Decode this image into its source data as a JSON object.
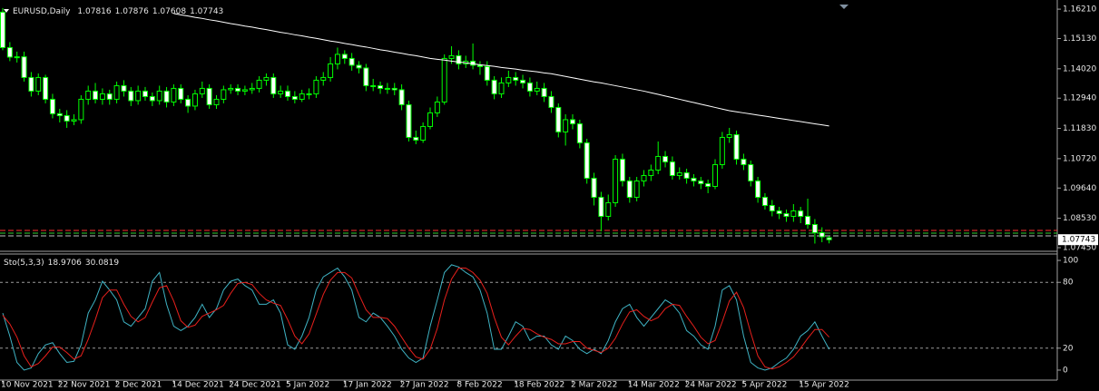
{
  "chart_data": [
    {
      "type": "candlestick",
      "title": "EURUSD,Daily",
      "categories": [
        "10 Nov 2021",
        null,
        null,
        null,
        null,
        null,
        null,
        null,
        "22 Nov 2021",
        null,
        null,
        null,
        null,
        null,
        null,
        null,
        "2 Dec 2021",
        null,
        null,
        null,
        null,
        null,
        null,
        null,
        "14 Dec 2021",
        null,
        null,
        null,
        null,
        null,
        null,
        null,
        "24 Dec 2021",
        null,
        null,
        null,
        null,
        null,
        null,
        null,
        "5 Jan 2022",
        null,
        null,
        null,
        null,
        null,
        null,
        null,
        "17 Jan 2022",
        null,
        null,
        null,
        null,
        null,
        null,
        null,
        "27 Jan 2022",
        null,
        null,
        null,
        null,
        null,
        null,
        null,
        "8 Feb 2022",
        null,
        null,
        null,
        null,
        null,
        null,
        null,
        "18 Feb 2022",
        null,
        null,
        null,
        null,
        null,
        null,
        null,
        "2 Mar 2022",
        null,
        null,
        null,
        null,
        null,
        null,
        null,
        "14 Mar 2022",
        null,
        null,
        null,
        null,
        null,
        null,
        null,
        "24 Mar 2022",
        null,
        null,
        null,
        null,
        null,
        null,
        null,
        "5 Apr 2022",
        null,
        null,
        null,
        null,
        null,
        null,
        null,
        "15 Apr 2022",
        null,
        null,
        null,
        null
      ],
      "open": [
        1.161,
        1.148,
        1.1445,
        1.1446,
        1.137,
        1.132,
        1.137,
        1.129,
        1.1237,
        1.123,
        1.121,
        1.1215,
        1.129,
        1.132,
        1.129,
        1.131,
        1.129,
        1.134,
        1.132,
        1.1285,
        1.132,
        1.13,
        1.1285,
        1.132,
        1.128,
        1.133,
        1.129,
        1.1265,
        1.131,
        1.133,
        1.127,
        1.129,
        1.1325,
        1.133,
        1.132,
        1.1325,
        1.133,
        1.136,
        1.137,
        1.131,
        1.132,
        1.13,
        1.129,
        1.131,
        1.131,
        1.136,
        1.137,
        1.142,
        1.1455,
        1.144,
        1.1415,
        1.1405,
        1.134,
        1.134,
        1.133,
        1.133,
        1.1325,
        1.127,
        1.115,
        1.114,
        1.119,
        1.124,
        1.128,
        1.144,
        1.145,
        1.142,
        1.143,
        1.1415,
        1.141,
        1.136,
        1.131,
        1.135,
        1.137,
        1.136,
        1.135,
        1.132,
        1.133,
        1.13,
        1.126,
        1.117,
        1.1215,
        1.12,
        1.113,
        1.1,
        1.093,
        1.086,
        1.091,
        1.107,
        1.099,
        1.093,
        1.099,
        1.101,
        1.103,
        1.108,
        1.106,
        1.101,
        1.102,
        1.1,
        1.099,
        1.098,
        1.097,
        1.105,
        1.115,
        1.116,
        1.107,
        1.105,
        1.099,
        1.093,
        1.09,
        1.088,
        1.087,
        1.086,
        1.088,
        1.086,
        1.083,
        1.08,
        1.07816
      ],
      "high": [
        1.1625,
        1.15,
        1.1465,
        1.1465,
        1.139,
        1.1385,
        1.138,
        1.131,
        1.1255,
        1.125,
        1.1235,
        1.1305,
        1.134,
        1.135,
        1.133,
        1.1325,
        1.1355,
        1.136,
        1.1335,
        1.134,
        1.1335,
        1.1315,
        1.134,
        1.1335,
        1.1345,
        1.1345,
        1.1305,
        1.1325,
        1.1355,
        1.1345,
        1.1305,
        1.134,
        1.1345,
        1.1345,
        1.134,
        1.135,
        1.1375,
        1.1385,
        1.1385,
        1.134,
        1.134,
        1.132,
        1.1325,
        1.133,
        1.1375,
        1.139,
        1.1445,
        1.148,
        1.147,
        1.146,
        1.143,
        1.142,
        1.1365,
        1.1355,
        1.135,
        1.135,
        1.1345,
        1.1285,
        1.1175,
        1.1205,
        1.126,
        1.13,
        1.1455,
        1.1485,
        1.147,
        1.145,
        1.1495,
        1.143,
        1.143,
        1.1375,
        1.137,
        1.1395,
        1.139,
        1.138,
        1.137,
        1.1355,
        1.135,
        1.132,
        1.1275,
        1.1235,
        1.1235,
        1.1215,
        1.1145,
        1.102,
        1.095,
        1.094,
        1.1085,
        1.109,
        1.1005,
        1.1005,
        1.103,
        1.105,
        1.1135,
        1.11,
        1.108,
        1.104,
        1.1035,
        1.1015,
        1.1005,
        1.0995,
        1.107,
        1.117,
        1.1185,
        1.1175,
        1.109,
        1.1065,
        1.1005,
        1.0945,
        1.092,
        1.0895,
        1.0885,
        1.0905,
        1.0895,
        1.0925,
        1.085,
        1.082,
        1.07876
      ],
      "low": [
        1.147,
        1.143,
        1.1425,
        1.1355,
        1.13,
        1.1305,
        1.1275,
        1.122,
        1.1205,
        1.1185,
        1.1195,
        1.12,
        1.127,
        1.1275,
        1.127,
        1.127,
        1.1275,
        1.13,
        1.1265,
        1.127,
        1.1285,
        1.1265,
        1.127,
        1.126,
        1.1265,
        1.1275,
        1.124,
        1.125,
        1.1295,
        1.1255,
        1.1255,
        1.1275,
        1.131,
        1.1305,
        1.1305,
        1.131,
        1.1315,
        1.134,
        1.1295,
        1.1295,
        1.1285,
        1.1275,
        1.128,
        1.129,
        1.1295,
        1.134,
        1.1355,
        1.14,
        1.142,
        1.1395,
        1.1385,
        1.132,
        1.132,
        1.131,
        1.131,
        1.1305,
        1.125,
        1.1135,
        1.1125,
        1.113,
        1.118,
        1.1225,
        1.127,
        1.142,
        1.14,
        1.1405,
        1.14,
        1.138,
        1.134,
        1.129,
        1.1295,
        1.1335,
        1.134,
        1.133,
        1.13,
        1.1305,
        1.128,
        1.124,
        1.115,
        1.112,
        1.118,
        1.111,
        1.098,
        1.09,
        1.0805,
        1.0845,
        1.0895,
        1.097,
        1.091,
        1.0915,
        1.097,
        1.099,
        1.1015,
        1.104,
        1.0995,
        1.0995,
        1.098,
        1.097,
        1.096,
        1.0945,
        1.096,
        1.1035,
        1.113,
        1.105,
        1.103,
        1.097,
        1.091,
        1.0885,
        1.086,
        1.085,
        1.084,
        1.084,
        1.0835,
        1.0815,
        1.076,
        1.0765,
        1.07608
      ],
      "close": [
        1.148,
        1.1445,
        1.1446,
        1.137,
        1.132,
        1.137,
        1.129,
        1.1237,
        1.123,
        1.121,
        1.1215,
        1.129,
        1.132,
        1.129,
        1.131,
        1.129,
        1.134,
        1.132,
        1.1285,
        1.132,
        1.13,
        1.1285,
        1.132,
        1.128,
        1.133,
        1.129,
        1.1265,
        1.131,
        1.133,
        1.127,
        1.129,
        1.1325,
        1.133,
        1.132,
        1.1325,
        1.133,
        1.136,
        1.137,
        1.131,
        1.132,
        1.13,
        1.129,
        1.131,
        1.131,
        1.136,
        1.137,
        1.142,
        1.1455,
        1.144,
        1.1415,
        1.1405,
        1.134,
        1.134,
        1.133,
        1.133,
        1.1325,
        1.127,
        1.115,
        1.114,
        1.119,
        1.124,
        1.128,
        1.144,
        1.145,
        1.142,
        1.143,
        1.1415,
        1.141,
        1.136,
        1.131,
        1.135,
        1.137,
        1.136,
        1.135,
        1.132,
        1.133,
        1.13,
        1.126,
        1.117,
        1.1215,
        1.12,
        1.113,
        1.1,
        1.093,
        1.086,
        1.091,
        1.107,
        1.099,
        1.093,
        1.099,
        1.101,
        1.103,
        1.108,
        1.106,
        1.101,
        1.102,
        1.1,
        1.099,
        1.098,
        1.097,
        1.105,
        1.115,
        1.116,
        1.107,
        1.105,
        1.099,
        1.093,
        1.09,
        1.088,
        1.087,
        1.086,
        1.088,
        1.086,
        1.083,
        1.08,
        1.0785,
        1.07743
      ],
      "up_color": "#000000",
      "down_color": "#ffffff",
      "wick_color": "#00ff00",
      "lines": [
        {
          "color": "#ffffff",
          "values": [
            null,
            null,
            null,
            null,
            null,
            null,
            null,
            null,
            null,
            null,
            null,
            null,
            null,
            null,
            null,
            null,
            null,
            null,
            null,
            null,
            null,
            null,
            null,
            null,
            1.1605,
            1.16,
            1.1596,
            1.1591,
            1.1587,
            1.1582,
            1.1578,
            1.1573,
            1.1568,
            1.1564,
            1.1559,
            1.1555,
            1.155,
            1.1546,
            1.1541,
            1.1536,
            1.1532,
            1.1527,
            1.1523,
            1.1518,
            1.1514,
            1.1509,
            1.1504,
            1.15,
            1.1495,
            1.1491,
            1.1486,
            1.1482,
            1.1477,
            1.1472,
            1.1468,
            1.1463,
            1.1459,
            1.1454,
            1.145,
            1.1445,
            1.144,
            1.1437,
            1.1434,
            1.143,
            1.1427,
            1.1424,
            1.142,
            1.1417,
            1.1414,
            1.1411,
            1.1407,
            1.1404,
            1.1401,
            1.1397,
            1.1394,
            1.1391,
            1.1387,
            1.1384,
            1.1379,
            1.1374,
            1.1369,
            1.1364,
            1.1359,
            1.1354,
            1.135,
            1.1345,
            1.134,
            1.1335,
            1.133,
            1.1325,
            1.132,
            1.1314,
            1.1308,
            1.1302,
            1.1296,
            1.129,
            1.1284,
            1.1278,
            1.1272,
            1.1266,
            1.126,
            1.1254,
            1.1248,
            1.1244,
            1.124,
            1.1236,
            1.1232,
            1.1228,
            1.1224,
            1.122,
            1.1216,
            1.1212,
            1.1208,
            1.1204,
            1.12,
            1.1196,
            1.1192
          ]
        }
      ],
      "ylim": [
        1.0735,
        1.1638
      ],
      "yticks": [
        {
          "value": 1.1621,
          "label": "1.16210"
        },
        {
          "value": 1.1513,
          "label": "1.15130"
        },
        {
          "value": 1.1402,
          "label": "1.14020"
        },
        {
          "value": 1.1294,
          "label": "1.12940"
        },
        {
          "value": 1.1183,
          "label": "1.11830"
        },
        {
          "value": 1.1072,
          "label": "1.10720"
        },
        {
          "value": 1.0964,
          "label": "1.09640"
        },
        {
          "value": 1.0853,
          "label": "1.08530"
        },
        {
          "value": 1.0745,
          "label": "1.07450"
        }
      ]
    },
    {
      "type": "line",
      "title": "Sto(5,3,3)",
      "series": [
        {
          "color": "#3fb3c4",
          "values": [
            52,
            31,
            7,
            0,
            2,
            15,
            23,
            25,
            15,
            7,
            8,
            23,
            52,
            64,
            81,
            73,
            64,
            44,
            40,
            48,
            56,
            81,
            89,
            60,
            40,
            36,
            40,
            48,
            60,
            48,
            56,
            73,
            81,
            83,
            77,
            73,
            60,
            60,
            64,
            52,
            23,
            19,
            31,
            48,
            73,
            85,
            89,
            93,
            85,
            73,
            48,
            44,
            52,
            48,
            40,
            31,
            19,
            11,
            7,
            11,
            40,
            64,
            89,
            96,
            94,
            89,
            85,
            73,
            52,
            19,
            19,
            31,
            44,
            40,
            27,
            31,
            31,
            23,
            19,
            31,
            27,
            19,
            15,
            19,
            15,
            27,
            44,
            56,
            60,
            48,
            40,
            48,
            56,
            64,
            60,
            52,
            36,
            31,
            23,
            19,
            40,
            73,
            77,
            64,
            31,
            7,
            2,
            0,
            2,
            7,
            11,
            19,
            31,
            36,
            44,
            31,
            18.9706
          ]
        },
        {
          "color": "#e8201c",
          "values": [
            50,
            42,
            30,
            13,
            3,
            6,
            13,
            21,
            21,
            16,
            10,
            13,
            28,
            46,
            66,
            73,
            73,
            60,
            49,
            44,
            48,
            62,
            75,
            77,
            63,
            45,
            39,
            41,
            49,
            52,
            55,
            59,
            70,
            79,
            80,
            78,
            70,
            64,
            61,
            59,
            46,
            31,
            24,
            33,
            51,
            69,
            82,
            89,
            89,
            84,
            69,
            55,
            48,
            48,
            47,
            40,
            30,
            20,
            12,
            10,
            19,
            38,
            64,
            83,
            93,
            93,
            89,
            82,
            70,
            48,
            30,
            23,
            31,
            38,
            37,
            33,
            30,
            28,
            24,
            24,
            26,
            26,
            20,
            18,
            16,
            20,
            29,
            42,
            53,
            55,
            49,
            45,
            48,
            56,
            60,
            59,
            49,
            40,
            30,
            24,
            27,
            44,
            63,
            71,
            57,
            34,
            13,
            3,
            1,
            3,
            7,
            12,
            20,
            29,
            37,
            37,
            30.0819
          ]
        }
      ],
      "ylim": [
        -8.3,
        105
      ],
      "yticks": [
        100,
        80,
        20,
        0
      ],
      "levels": [
        80,
        20
      ]
    }
  ]
}
